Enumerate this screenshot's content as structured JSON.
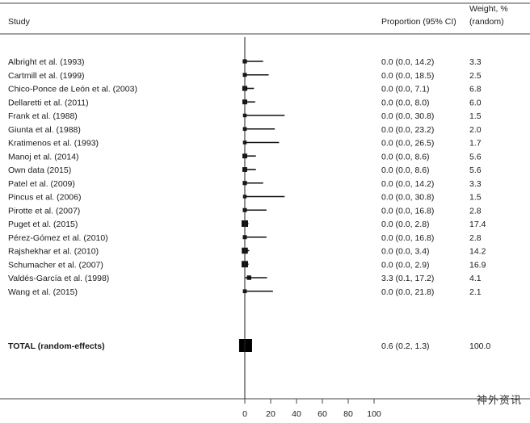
{
  "chart_data": {
    "type": "forest",
    "headers": {
      "study": "Study",
      "proportion": "Proportion (95% CI)",
      "weight_line1": "Weight, %",
      "weight_line2": "(random)"
    },
    "xlim": [
      0,
      100
    ],
    "x_ticks": [
      "0",
      "20",
      "40",
      "60",
      "80",
      "100"
    ],
    "studies": [
      {
        "name": "Albright et al. (1993)",
        "est": 0.0,
        "lo": 0.0,
        "hi": 14.2,
        "ci_text": "0.0 (0.0, 14.2)",
        "weight": "3.3"
      },
      {
        "name": "Cartmill et al. (1999)",
        "est": 0.0,
        "lo": 0.0,
        "hi": 18.5,
        "ci_text": "0.0 (0.0, 18.5)",
        "weight": "2.5"
      },
      {
        "name": "Chico-Ponce de León et al. (2003)",
        "est": 0.0,
        "lo": 0.0,
        "hi": 7.1,
        "ci_text": "0.0 (0.0, 7.1)",
        "weight": "6.8"
      },
      {
        "name": "Dellaretti et al. (2011)",
        "est": 0.0,
        "lo": 0.0,
        "hi": 8.0,
        "ci_text": "0.0 (0.0, 8.0)",
        "weight": "6.0"
      },
      {
        "name": "Frank et al. (1988)",
        "est": 0.0,
        "lo": 0.0,
        "hi": 30.8,
        "ci_text": "0.0 (0.0, 30.8)",
        "weight": "1.5"
      },
      {
        "name": "Giunta et al. (1988)",
        "est": 0.0,
        "lo": 0.0,
        "hi": 23.2,
        "ci_text": "0.0 (0.0, 23.2)",
        "weight": "2.0"
      },
      {
        "name": "Kratimenos et al. (1993)",
        "est": 0.0,
        "lo": 0.0,
        "hi": 26.5,
        "ci_text": "0.0 (0.0, 26.5)",
        "weight": "1.7"
      },
      {
        "name": "Manoj et al. (2014)",
        "est": 0.0,
        "lo": 0.0,
        "hi": 8.6,
        "ci_text": "0.0 (0.0, 8.6)",
        "weight": "5.6"
      },
      {
        "name": "Own data (2015)",
        "est": 0.0,
        "lo": 0.0,
        "hi": 8.6,
        "ci_text": "0.0 (0.0, 8.6)",
        "weight": "5.6"
      },
      {
        "name": "Patel et al. (2009)",
        "est": 0.0,
        "lo": 0.0,
        "hi": 14.2,
        "ci_text": "0.0 (0.0, 14.2)",
        "weight": "3.3"
      },
      {
        "name": "Pincus et al. (2006)",
        "est": 0.0,
        "lo": 0.0,
        "hi": 30.8,
        "ci_text": "0.0 (0.0, 30.8)",
        "weight": "1.5"
      },
      {
        "name": "Pirotte et al. (2007)",
        "est": 0.0,
        "lo": 0.0,
        "hi": 16.8,
        "ci_text": "0.0 (0.0, 16.8)",
        "weight": "2.8"
      },
      {
        "name": "Puget et al. (2015)",
        "est": 0.0,
        "lo": 0.0,
        "hi": 2.8,
        "ci_text": "0.0 (0.0, 2.8)",
        "weight": "17.4"
      },
      {
        "name": "Pérez-Gómez et al. (2010)",
        "est": 0.0,
        "lo": 0.0,
        "hi": 16.8,
        "ci_text": "0.0 (0.0, 16.8)",
        "weight": "2.8"
      },
      {
        "name": "Rajshekhar et al. (2010)",
        "est": 0.0,
        "lo": 0.0,
        "hi": 3.4,
        "ci_text": "0.0 (0.0, 3.4)",
        "weight": "14.2"
      },
      {
        "name": "Schumacher et al. (2007)",
        "est": 0.0,
        "lo": 0.0,
        "hi": 2.9,
        "ci_text": "0.0 (0.0, 2.9)",
        "weight": "16.9"
      },
      {
        "name": "Valdés-García et al. (1998)",
        "est": 3.3,
        "lo": 0.1,
        "hi": 17.2,
        "ci_text": "3.3 (0.1, 17.2)",
        "weight": "4.1"
      },
      {
        "name": "Wang et al. (2015)",
        "est": 0.0,
        "lo": 0.0,
        "hi": 21.8,
        "ci_text": "0.0 (0.0, 21.8)",
        "weight": "2.1"
      }
    ],
    "total": {
      "name": "TOTAL (random-effects)",
      "est": 0.6,
      "lo": 0.2,
      "hi": 1.3,
      "ci_text": "0.6 (0.2, 1.3)",
      "weight": "100.0"
    }
  },
  "watermark": "神外资讯"
}
